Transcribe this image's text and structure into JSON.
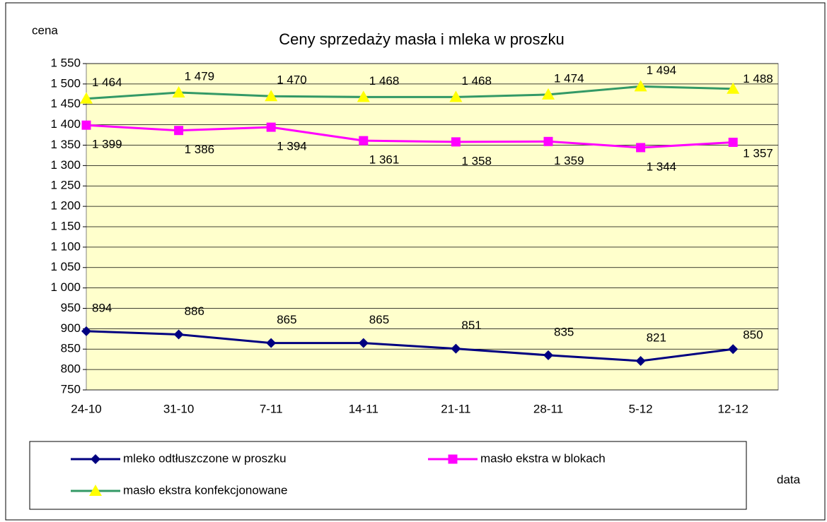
{
  "chart_data": {
    "type": "line",
    "title": "Ceny sprzedaży masła i mleka w proszku",
    "ylabel": "cena",
    "xlabel": "data",
    "categories": [
      "24-10",
      "31-10",
      "7-11",
      "14-11",
      "21-11",
      "28-11",
      "5-12",
      "12-12"
    ],
    "series": [
      {
        "name": "mleko odtłuszczone w proszku",
        "color": "#000080",
        "marker": "diamond",
        "marker_color": "#000080",
        "values": [
          894,
          886,
          865,
          865,
          851,
          835,
          821,
          850
        ]
      },
      {
        "name": "masło ekstra w blokach",
        "color": "#ff00ff",
        "marker": "square",
        "marker_color": "#ff00ff",
        "values": [
          1399,
          1386,
          1394,
          1361,
          1358,
          1359,
          1344,
          1357
        ],
        "value_labels": [
          "1 399",
          "1 386",
          "1 394",
          "1 361",
          "1 358",
          "1 359",
          "1 344",
          "1 357"
        ]
      },
      {
        "name": "masło ekstra konfekcjonowane",
        "color": "#339966",
        "marker": "triangle",
        "marker_color": "#ffff00",
        "values": [
          1464,
          1479,
          1470,
          1468,
          1468,
          1474,
          1494,
          1488
        ],
        "value_labels": [
          "1 464",
          "1 479",
          "1 470",
          "1 468",
          "1 468",
          "1 474",
          "1 494",
          "1 488"
        ]
      }
    ],
    "ylim": [
      750,
      1550
    ],
    "yticks": [
      750,
      800,
      850,
      900,
      950,
      {
        "value": 1000,
        "label": "1 000"
      },
      {
        "value": 1050,
        "label": "1 050"
      },
      {
        "value": 1100,
        "label": "1 100"
      },
      {
        "value": 1150,
        "label": "1 150"
      },
      {
        "value": 1200,
        "label": "1 200"
      },
      {
        "value": 1250,
        "label": "1 250"
      },
      {
        "value": 1300,
        "label": "1 300"
      },
      {
        "value": 1350,
        "label": "1 350"
      },
      {
        "value": 1400,
        "label": "1 400"
      },
      {
        "value": 1450,
        "label": "1 450"
      },
      {
        "value": 1500,
        "label": "1 500"
      },
      {
        "value": 1550,
        "label": "1 550"
      }
    ],
    "grid": true,
    "plot_background": "#ffffcc"
  }
}
